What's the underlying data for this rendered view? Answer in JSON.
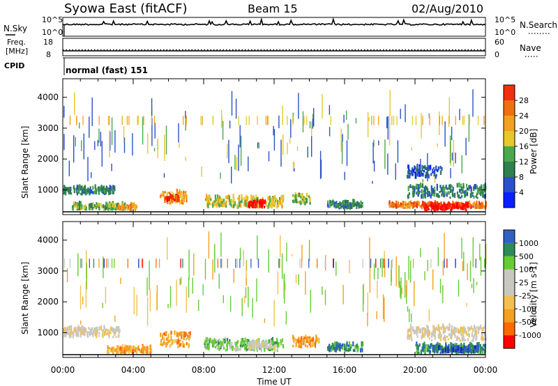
{
  "header": {
    "station": "Syowa East (fitACF)",
    "beam": "Beam 15",
    "date": "02/Aug/2010"
  },
  "colors": {
    "power_scale": [
      "#0a1fff",
      "#2a4fc8",
      "#2f7f4f",
      "#4aa84e",
      "#e6c82a",
      "#f2a020",
      "#f07010",
      "#f03010",
      "#ff0000"
    ],
    "velocity_scale": [
      "#ff0000",
      "#ff6a00",
      "#f2a020",
      "#f2c050",
      "#c8c8c0",
      "#c8c8c0",
      "#66cc33",
      "#2e8b57",
      "#3060c0",
      "#1428b4"
    ]
  },
  "chart_data": [
    {
      "panel": "sky-search",
      "type": "line",
      "left_label": "N.Sky",
      "right_label": "N.Search",
      "y_ticks_left": [
        "10^5",
        "10^0"
      ],
      "y_ticks_right": [
        "10^5",
        "10^0"
      ],
      "description_values": {
        "n_sky_level": 3.3,
        "log_max": 5
      }
    },
    {
      "panel": "freq-nave",
      "type": "line",
      "left_label": "Freq.",
      "left_unit": "[MHz]",
      "right_label": "Nave",
      "y_ticks_left": [
        "18",
        "8"
      ],
      "y_ticks_right": [
        "60",
        "0"
      ],
      "ylim_left": [
        8,
        18
      ],
      "ylim_right": [
        0,
        60
      ],
      "freq_value": 11.4,
      "nave_value": 22,
      "cpid_label": "CPID",
      "cpid_text": "normal (fast) 151"
    },
    {
      "panel": "power",
      "type": "heatmap",
      "ylabel": "Slant Range [km]",
      "xlabel": "",
      "y_ticks": [
        "1000",
        "2000",
        "3000",
        "4000"
      ],
      "ylim": [
        200,
        4600
      ],
      "xlim_hours": [
        0,
        24
      ],
      "colorbar_label": "Power [dB]",
      "colorbar_ticks": [
        "4",
        "8",
        "12",
        "16",
        "20",
        "24",
        "28"
      ],
      "colorbar_range": [
        0,
        32
      ],
      "bands": [
        {
          "t0": 0.0,
          "t1": 3.0,
          "r0": 820,
          "r1": 1020,
          "level": 2
        },
        {
          "t0": 0.5,
          "t1": 3.5,
          "r0": 320,
          "r1": 480,
          "level": 3
        },
        {
          "t0": 3.0,
          "t1": 4.2,
          "r0": 300,
          "r1": 440,
          "level": 5
        },
        {
          "t0": 5.5,
          "t1": 7.0,
          "r0": 500,
          "r1": 900,
          "level": 5
        },
        {
          "t0": 5.8,
          "t1": 6.6,
          "r0": 600,
          "r1": 760,
          "level": 7
        },
        {
          "t0": 8.0,
          "t1": 12.5,
          "r0": 380,
          "r1": 720,
          "level": 4
        },
        {
          "t0": 10.5,
          "t1": 11.5,
          "r0": 400,
          "r1": 560,
          "level": 8
        },
        {
          "t0": 13.0,
          "t1": 14.0,
          "r0": 500,
          "r1": 800,
          "level": 3
        },
        {
          "t0": 15.0,
          "t1": 17.0,
          "r0": 360,
          "r1": 560,
          "level": 2
        },
        {
          "t0": 18.5,
          "t1": 24.0,
          "r0": 380,
          "r1": 500,
          "level": 6
        },
        {
          "t0": 20.5,
          "t1": 23.0,
          "r0": 300,
          "r1": 480,
          "level": 8
        },
        {
          "t0": 19.5,
          "t1": 24.0,
          "r0": 700,
          "r1": 1100,
          "level": 2
        },
        {
          "t0": 19.5,
          "t1": 21.5,
          "r0": 1350,
          "r1": 1700,
          "level": 1
        }
      ]
    },
    {
      "panel": "velocity",
      "type": "heatmap",
      "ylabel": "Slant Range [km]",
      "xlabel": "Time UT",
      "y_ticks": [
        "1000",
        "2000",
        "3000",
        "4000"
      ],
      "ylim": [
        200,
        4600
      ],
      "xlim_hours": [
        0,
        24
      ],
      "x_ticks": [
        "00:00",
        "04:00",
        "08:00",
        "12:00",
        "16:00",
        "20:00",
        "00:00"
      ],
      "colorbar_label": "Velocity [m s-1]",
      "colorbar_ticks": [
        "-1000",
        "-500",
        "-100",
        "-25",
        "25",
        "100",
        "500",
        "1000"
      ],
      "bands": [
        {
          "t0": 0.0,
          "t1": 3.2,
          "r0": 820,
          "r1": 1100,
          "level": 4
        },
        {
          "t0": 2.5,
          "t1": 5.0,
          "r0": 300,
          "r1": 480,
          "level": 2
        },
        {
          "t0": 5.5,
          "t1": 7.2,
          "r0": 500,
          "r1": 1000,
          "level": 2
        },
        {
          "t0": 8.0,
          "t1": 12.5,
          "r0": 380,
          "r1": 720,
          "level": 6
        },
        {
          "t0": 10.5,
          "t1": 12.0,
          "r0": 420,
          "r1": 620,
          "level": 4
        },
        {
          "t0": 13.0,
          "t1": 14.5,
          "r0": 500,
          "r1": 800,
          "level": 2
        },
        {
          "t0": 15.0,
          "t1": 17.0,
          "r0": 360,
          "r1": 560,
          "level": 7
        },
        {
          "t0": 19.5,
          "t1": 24.0,
          "r0": 700,
          "r1": 1150,
          "level": 4
        },
        {
          "t0": 20.0,
          "t1": 24.0,
          "r0": 300,
          "r1": 560,
          "level": 7
        },
        {
          "t0": 21.0,
          "t1": 23.5,
          "r0": 320,
          "r1": 480,
          "level": 8
        }
      ]
    }
  ]
}
